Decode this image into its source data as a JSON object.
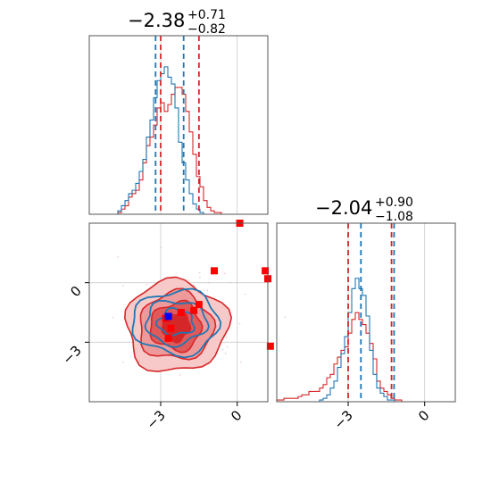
{
  "chart_data": {
    "type": "corner",
    "grid": true,
    "colors": {
      "model_a": "#1f77b4",
      "model_b": "#d62728",
      "marker_red": "#ff0000",
      "marker_blue": "#0000ff"
    },
    "parameters": [
      {
        "median": "−2.38",
        "plus": "+0.71",
        "minus": "−0.82",
        "xlim": [
          -5.8,
          1.2
        ],
        "quantiles_a": [
          -3.2,
          -2.1
        ],
        "quantiles_b": [
          -3.0,
          -1.5
        ],
        "hist_a": [
          0,
          0,
          0,
          0,
          0,
          0,
          0,
          0,
          0.02,
          0.05,
          0.08,
          0.12,
          0.14,
          0.18,
          0.25,
          0.32,
          0.45,
          0.55,
          0.68,
          0.78,
          0.82,
          0.86,
          0.8,
          0.76,
          0.62,
          0.42,
          0.3,
          0.2,
          0.12,
          0.06,
          0.03,
          0.01,
          0,
          0,
          0,
          0,
          0,
          0,
          0,
          0,
          0,
          0,
          0,
          0,
          0,
          0,
          0,
          0,
          0,
          0
        ],
        "hist_b": [
          0,
          0,
          0,
          0,
          0,
          0,
          0,
          0,
          0.01,
          0.03,
          0.05,
          0.1,
          0.12,
          0.14,
          0.2,
          0.3,
          0.4,
          0.45,
          0.52,
          0.62,
          0.65,
          0.6,
          0.64,
          0.7,
          0.74,
          0.74,
          0.7,
          0.6,
          0.48,
          0.35,
          0.22,
          0.16,
          0.08,
          0.04,
          0.02,
          0.01,
          0.01,
          0,
          0,
          0,
          0,
          0,
          0,
          0,
          0,
          0,
          0,
          0,
          0,
          0
        ]
      },
      {
        "median": "−2.04",
        "plus": "+0.90",
        "minus": "−1.08",
        "xlim": [
          -5.8,
          1.2
        ],
        "quantiles_a": [
          -2.5,
          -1.2
        ],
        "quantiles_b": [
          -3.0,
          -1.3
        ],
        "hist_a": [
          0,
          0,
          0,
          0,
          0,
          0,
          0,
          0,
          0,
          0,
          0,
          0,
          0.01,
          0.02,
          0.04,
          0.08,
          0.12,
          0.2,
          0.28,
          0.38,
          0.52,
          0.66,
          0.72,
          0.66,
          0.62,
          0.5,
          0.3,
          0.16,
          0.08,
          0.05,
          0.03,
          0.01,
          0.01,
          0,
          0,
          0,
          0,
          0,
          0,
          0,
          0,
          0,
          0,
          0,
          0,
          0,
          0,
          0,
          0,
          0
        ],
        "hist_b": [
          0.01,
          0.01,
          0.02,
          0.02,
          0.02,
          0.02,
          0.03,
          0.04,
          0.04,
          0.06,
          0.06,
          0.06,
          0.08,
          0.1,
          0.14,
          0.16,
          0.22,
          0.26,
          0.3,
          0.32,
          0.4,
          0.48,
          0.52,
          0.48,
          0.45,
          0.4,
          0.34,
          0.25,
          0.12,
          0.08,
          0.06,
          0.04,
          0.02,
          0.01,
          0.01,
          0,
          0,
          0,
          0,
          0,
          0,
          0,
          0,
          0,
          0,
          0,
          0,
          0,
          0,
          0
        ]
      }
    ],
    "x_ticks": [
      -3,
      0
    ],
    "y_ticks": [
      -3,
      0
    ],
    "tick_labels": [
      "−3",
      "0"
    ],
    "joint": {
      "xlim": [
        -5.8,
        1.2
      ],
      "ylim": [
        -6.0,
        3.0
      ],
      "center_a": [
        -2.4,
        -2.0
      ],
      "center_b": [
        -2.4,
        -2.2
      ],
      "red_points": [
        [
          -2.8,
          -1.8
        ],
        [
          -2.6,
          -2.3
        ],
        [
          -2.2,
          -1.5
        ],
        [
          -1.7,
          -1.4
        ],
        [
          -2.7,
          -2.8
        ],
        [
          -1.5,
          -1.1
        ],
        [
          -0.9,
          0.6
        ],
        [
          1.1,
          0.6
        ],
        [
          1.2,
          0.2
        ],
        [
          1.3,
          -3.2
        ],
        [
          0.1,
          3.0
        ]
      ],
      "blue_point": [
        -2.7,
        -1.7
      ]
    }
  }
}
